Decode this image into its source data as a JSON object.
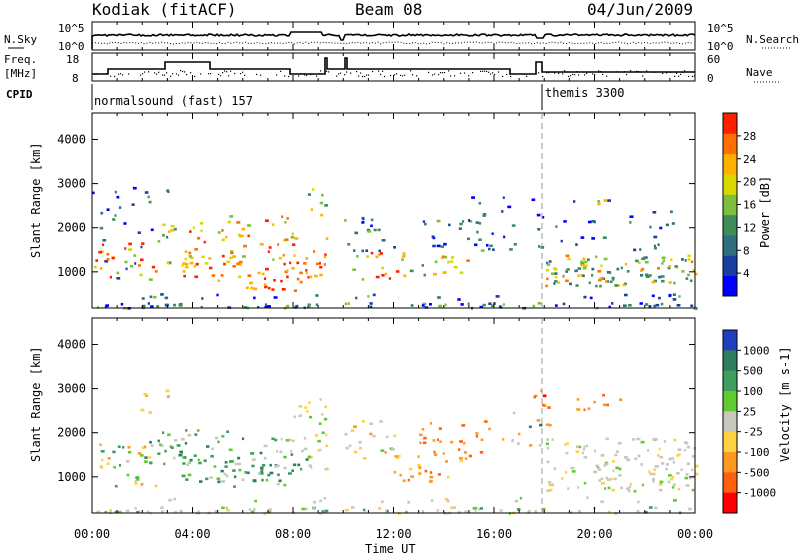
{
  "header": {
    "station": "Kodiak (fitACF)",
    "beam": "Beam 08",
    "date": "04/Jun/2009"
  },
  "top_panel": {
    "left_label": "N.Sky",
    "right_label": "N.Search",
    "left_ticks": [
      "10^5",
      "10^0"
    ],
    "right_ticks": [
      "10^5",
      "10^0"
    ]
  },
  "freq_panel": {
    "left_label_1": "Freq.",
    "left_label_2": "[MHz]",
    "right_label": "Nave",
    "left_ticks": [
      "18",
      "8"
    ],
    "right_ticks": [
      "60",
      "0"
    ]
  },
  "cpid": {
    "label": "CPID",
    "segments": [
      {
        "name": "normalsound (fast) 157",
        "start_hour": 0,
        "end_hour": 18
      },
      {
        "name": "themis 3300",
        "start_hour": 18,
        "end_hour": 24
      }
    ]
  },
  "chart_data": [
    {
      "type": "heatmap",
      "title": "",
      "xlabel": "",
      "ylabel": "Slant Range [km]",
      "xlim": [
        0,
        24
      ],
      "ylim": [
        180,
        4600
      ],
      "y_ticks": [
        1000,
        2000,
        3000,
        4000
      ],
      "colorbar": {
        "label": "Power [dB]",
        "min": 0,
        "max": 32,
        "ticks": [
          4,
          8,
          12,
          16,
          20,
          24,
          28
        ],
        "colors": [
          "#0000ff",
          "#1a3fa0",
          "#2e6e7f",
          "#3d8c5a",
          "#7fbf3f",
          "#d8d800",
          "#ffb000",
          "#ff7000",
          "#ff2000"
        ]
      },
      "data_gap_hours": [
        9.3,
        10.0
      ]
    },
    {
      "type": "heatmap",
      "title": "",
      "xlabel": "",
      "ylabel": "Slant Range [km]",
      "xlim": [
        0,
        24
      ],
      "ylim": [
        180,
        4600
      ],
      "y_ticks": [
        1000,
        2000,
        3000,
        4000
      ],
      "colorbar": {
        "label": "Velocity [m s-1]",
        "ticks": [
          "1000",
          "500",
          "100",
          "25",
          "-25",
          "-100",
          "-500",
          "-1000"
        ],
        "colors": [
          "#1f3fbf",
          "#2e7d5f",
          "#3f9f5f",
          "#60cc30",
          "#c8c8c0",
          "#ffd040",
          "#ff9a20",
          "#ff6010",
          "#ff0000"
        ]
      },
      "data_gap_hours": [
        9.3,
        10.0
      ]
    }
  ],
  "x_axis": {
    "label": "Time UT",
    "ticks": [
      "00:00",
      "04:00",
      "08:00",
      "12:00",
      "16:00",
      "20:00",
      "00:00"
    ]
  }
}
